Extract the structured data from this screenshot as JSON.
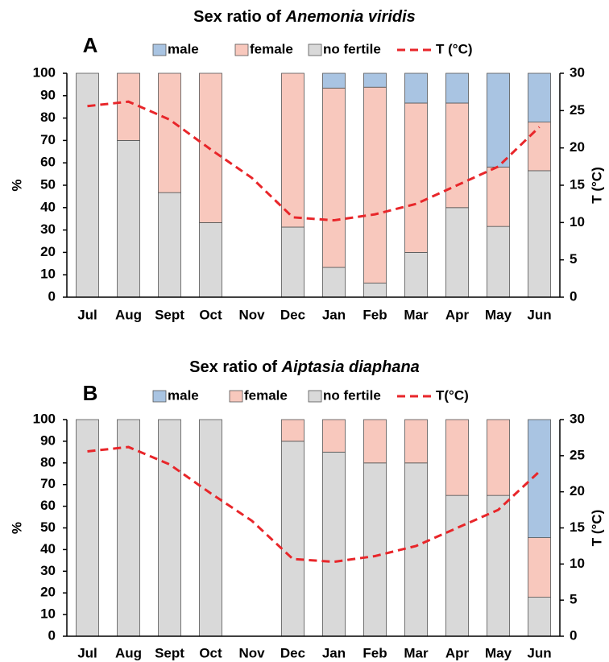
{
  "chart_data": [
    {
      "type": "bar",
      "title": "Sex ratio of",
      "species": "Anemonia viridis",
      "panel": "A",
      "y_label": "%",
      "y2_label": "T (°C)",
      "categories": [
        "Jul",
        "Aug",
        "Sept",
        "Oct",
        "Nov",
        "Dec",
        "Jan",
        "Feb",
        "Mar",
        "Apr",
        "May",
        "Jun"
      ],
      "series": [
        {
          "name": "no fertile",
          "color": "#d9d9d9",
          "values": [
            100,
            70,
            46.7,
            33.3,
            null,
            31.3,
            13.3,
            6.3,
            20,
            40,
            31.6,
            56.5
          ]
        },
        {
          "name": "female",
          "color": "#f8c8bd",
          "values": [
            0,
            30,
            53.3,
            66.7,
            null,
            68.7,
            80.1,
            87.5,
            66.7,
            46.7,
            26.5,
            21.7
          ]
        },
        {
          "name": "male",
          "color": "#a9c4e2",
          "values": [
            0,
            0,
            0,
            0,
            null,
            0,
            6.6,
            6.2,
            13.3,
            13.3,
            41.9,
            21.8
          ]
        },
        {
          "name": "T (°C)",
          "color": "#e8262a",
          "type": "line",
          "axis": "y2",
          "values": [
            25.6,
            26.2,
            23.8,
            19.8,
            16,
            10.7,
            10.3,
            11.1,
            12.5,
            15,
            17.5,
            22.8
          ]
        }
      ],
      "ylim": [
        0,
        100
      ],
      "yticks": [
        0,
        10,
        20,
        30,
        40,
        50,
        60,
        70,
        80,
        90,
        100
      ],
      "y2lim": [
        0,
        30
      ],
      "y2ticks": [
        0,
        5,
        10,
        15,
        20,
        25,
        30
      ]
    },
    {
      "type": "bar",
      "title": "Sex ratio of",
      "species": "Aiptasia diaphana",
      "panel": "B",
      "y_label": "%",
      "y2_label": "T (°C)",
      "categories": [
        "Jul",
        "Aug",
        "Sept",
        "Oct",
        "Nov",
        "Dec",
        "Jan",
        "Feb",
        "Mar",
        "Apr",
        "May",
        "Jun"
      ],
      "series": [
        {
          "name": "no fertile",
          "color": "#d9d9d9",
          "values": [
            100,
            100,
            100,
            100,
            null,
            90,
            85,
            80,
            80,
            65,
            65,
            18
          ]
        },
        {
          "name": "female",
          "color": "#f8c8bd",
          "values": [
            0,
            0,
            0,
            0,
            null,
            10,
            15,
            20,
            20,
            35,
            35,
            27.5
          ]
        },
        {
          "name": "male",
          "color": "#a9c4e2",
          "values": [
            0,
            0,
            0,
            0,
            null,
            0,
            0,
            0,
            0,
            0,
            0,
            54.5
          ]
        },
        {
          "name": "T(°C)",
          "color": "#e8262a",
          "type": "line",
          "axis": "y2",
          "values": [
            25.6,
            26.2,
            23.8,
            19.8,
            16,
            10.7,
            10.3,
            11.1,
            12.5,
            15,
            17.5,
            22.8
          ]
        }
      ],
      "ylim": [
        0,
        100
      ],
      "yticks": [
        0,
        10,
        20,
        30,
        40,
        50,
        60,
        70,
        80,
        90,
        100
      ],
      "y2lim": [
        0,
        30
      ],
      "y2ticks": [
        0,
        5,
        10,
        15,
        20,
        25,
        30
      ]
    }
  ]
}
